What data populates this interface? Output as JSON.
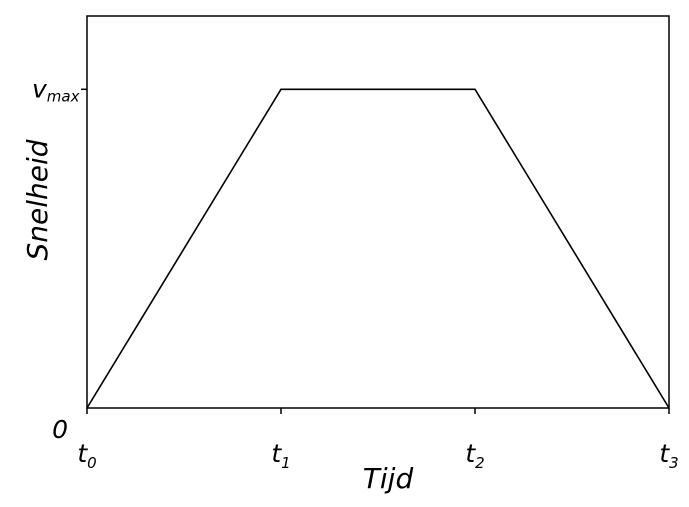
{
  "chart_data": {
    "type": "line",
    "title": "",
    "xlabel": "Tijd",
    "ylabel": "Snelheid",
    "x_ticks": [
      {
        "base": "t",
        "sub": "0",
        "value": 0
      },
      {
        "base": "t",
        "sub": "1",
        "value": 1
      },
      {
        "base": "t",
        "sub": "2",
        "value": 2
      },
      {
        "base": "t",
        "sub": "3",
        "value": 3
      }
    ],
    "y_ticks": [
      {
        "base": "0",
        "sub": "",
        "value": 0
      },
      {
        "base": "v",
        "sub": "max",
        "value": 1
      }
    ],
    "xlim": [
      0,
      3
    ],
    "ylim": [
      0,
      1.23
    ],
    "series": [
      {
        "x": [
          0,
          1,
          2,
          3
        ],
        "y": [
          0,
          1,
          1,
          0
        ]
      }
    ],
    "grid": false,
    "legend": false,
    "line_color": "#000000"
  }
}
